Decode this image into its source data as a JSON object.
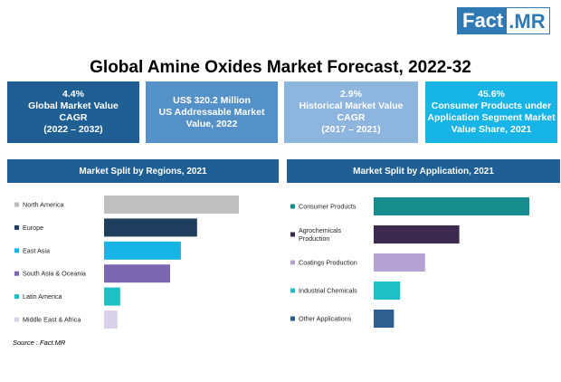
{
  "logo": {
    "part1": "Fact",
    "part2": ".MR"
  },
  "title": "Global Amine Oxides Market Forecast, 2022-32",
  "kpis": [
    {
      "value": "4.4%",
      "line1": "Global Market Value",
      "line2": "CAGR",
      "line3": "(2022 – 2032)"
    },
    {
      "value": "US$ 320.2 Million",
      "line1": "US Addressable  Market",
      "line2": "Value, 2022",
      "line3": ""
    },
    {
      "value": "2.9%",
      "line1": "Historical Market Value",
      "line2": "CAGR",
      "line3": "(2017 – 2021)"
    },
    {
      "value": "45.6%",
      "line1": "Consumer Products under",
      "line2": "Application Segment Market",
      "line3": "Value Share, 2021"
    }
  ],
  "colors": {
    "dark_blue": "#1f5f94",
    "mid_blue": "#5591c9",
    "light_blue": "#8db5de",
    "cyan": "#17b4e6"
  },
  "source": "Source : Fact.MR",
  "chart_data": [
    {
      "type": "bar",
      "orientation": "horizontal",
      "title": "Market Split by Regions, 2021",
      "categories": [
        "North America",
        "Europe",
        "East Asia",
        "South Asia & Oceania",
        "Latin America",
        "Middle East & Africa"
      ],
      "values": [
        100,
        69,
        57,
        49,
        12,
        10
      ],
      "colors": [
        "#bfbfbf",
        "#1f3d5c",
        "#17b4e6",
        "#7b66b0",
        "#1fc0c4",
        "#d9d2e9"
      ],
      "legend_position": "left"
    },
    {
      "type": "bar",
      "orientation": "horizontal",
      "title": "Market Split by Application, 2021",
      "categories": [
        "Consumer Products",
        "Agrochemicals Production",
        "Coatings Production",
        "Industrial Chemicals",
        "Other Applications"
      ],
      "values": [
        100,
        55,
        33,
        17,
        13
      ],
      "colors": [
        "#168c8c",
        "#3b2a4e",
        "#b4a3d2",
        "#1fc0c4",
        "#2f5f8f"
      ],
      "legend_position": "left"
    }
  ]
}
